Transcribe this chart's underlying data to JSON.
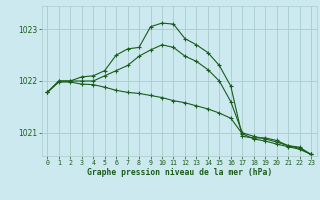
{
  "title": "Graphe pression niveau de la mer (hPa)",
  "background_color": "#cce9f0",
  "grid_color": "#aacccc",
  "line_color": "#1a5c1a",
  "text_color": "#1a5c1a",
  "xlim": [
    -0.5,
    23.5
  ],
  "ylim": [
    1020.55,
    1023.45
  ],
  "yticks": [
    1021,
    1022,
    1023
  ],
  "xticks": [
    0,
    1,
    2,
    3,
    4,
    5,
    6,
    7,
    8,
    9,
    10,
    11,
    12,
    13,
    14,
    15,
    16,
    17,
    18,
    19,
    20,
    21,
    22,
    23
  ],
  "series": [
    [
      1021.78,
      1022.0,
      1022.0,
      1022.08,
      1022.1,
      1022.2,
      1022.5,
      1022.62,
      1022.65,
      1023.05,
      1023.12,
      1023.1,
      1022.82,
      1022.7,
      1022.55,
      1022.3,
      1021.9,
      1020.93,
      1020.9,
      1020.9,
      1020.85,
      1020.75,
      1020.72,
      1020.58
    ],
    [
      1021.78,
      1022.0,
      1022.0,
      1022.0,
      1022.0,
      1022.1,
      1022.2,
      1022.3,
      1022.48,
      1022.6,
      1022.7,
      1022.65,
      1022.48,
      1022.38,
      1022.22,
      1022.0,
      1021.6,
      1021.0,
      1020.93,
      1020.88,
      1020.82,
      1020.75,
      1020.7,
      1020.58
    ],
    [
      1021.78,
      1021.98,
      1021.98,
      1021.94,
      1021.93,
      1021.88,
      1021.82,
      1021.78,
      1021.76,
      1021.72,
      1021.68,
      1021.62,
      1021.58,
      1021.52,
      1021.46,
      1021.38,
      1021.28,
      1020.98,
      1020.88,
      1020.84,
      1020.78,
      1020.73,
      1020.68,
      1020.58
    ]
  ]
}
